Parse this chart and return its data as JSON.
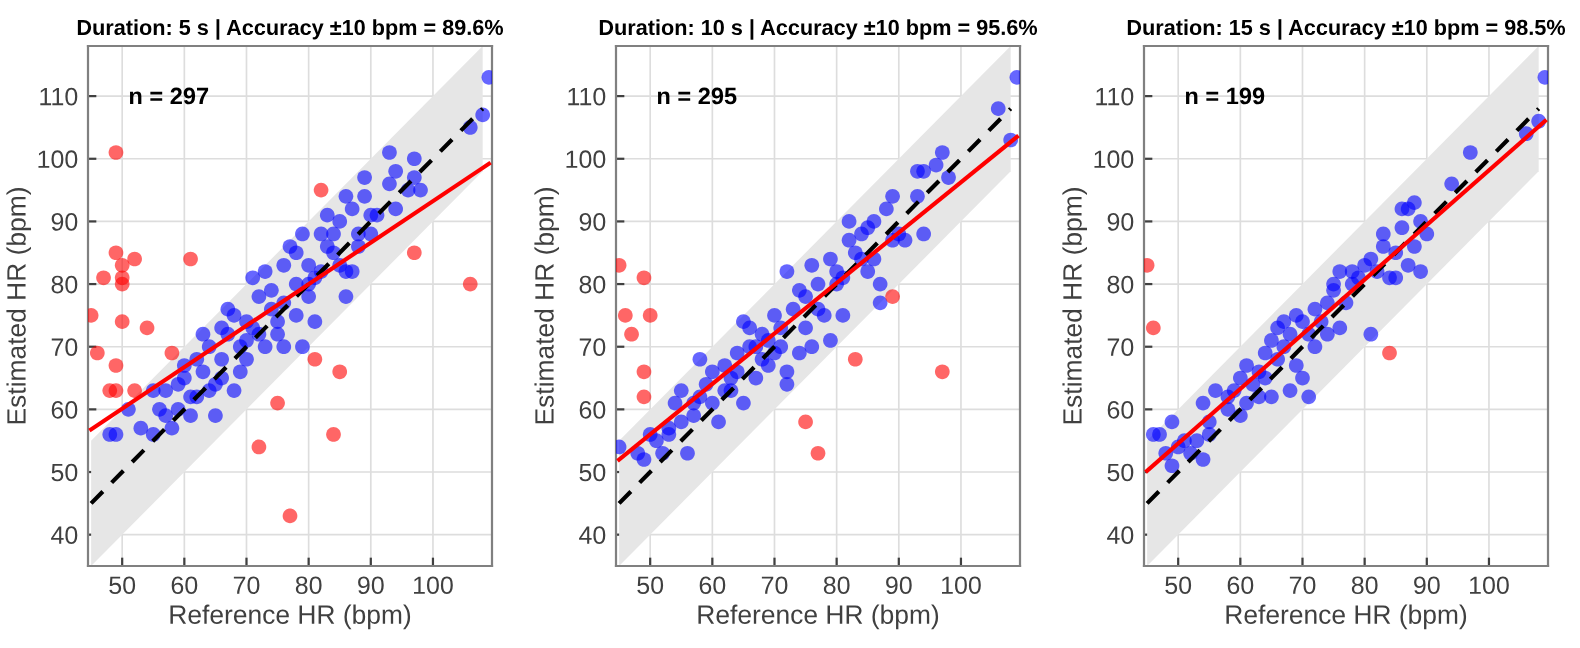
{
  "chart_data": [
    {
      "type": "scatter",
      "title": "Duration: 5 s | Accuracy ±10 bpm = 89.6%",
      "xlabel": "Reference HR (bpm)",
      "ylabel": "Estimated HR (bpm)",
      "annotations": [
        "n = 297"
      ],
      "xlim": [
        44.5,
        109.5
      ],
      "ylim": [
        35,
        118
      ],
      "xticks": [
        50,
        60,
        70,
        80,
        90,
        100
      ],
      "yticks": [
        40,
        50,
        60,
        70,
        80,
        90,
        100,
        110
      ],
      "grid": true,
      "marker": "circle",
      "series": [
        {
          "type": "line",
          "marker": "none",
          "color": "#000000",
          "line_style": "dashed",
          "x": [
            45,
            108
          ],
          "values": [
            45,
            108
          ],
          "lower": [
            35,
            98
          ],
          "upper": [
            55,
            118
          ]
        },
        {
          "color": "#0000ff",
          "x": [
            49,
            48,
            51,
            53,
            55,
            56,
            57,
            55,
            58,
            59,
            60,
            61,
            62,
            62,
            63,
            64,
            65,
            65,
            66,
            66,
            67,
            68,
            68,
            69,
            70,
            70,
            71,
            72,
            72,
            73,
            74,
            74,
            75,
            76,
            76,
            77,
            78,
            78,
            79,
            79,
            80,
            80,
            81,
            81,
            82,
            83,
            83,
            84,
            85,
            85,
            86,
            86,
            87,
            87,
            88,
            89,
            89,
            90,
            90,
            91,
            93,
            93,
            94,
            94,
            96,
            97,
            97,
            98,
            106,
            108,
            109,
            67,
            69,
            63,
            60,
            61,
            64,
            71,
            73,
            75,
            78,
            82,
            84,
            88,
            86,
            66,
            70,
            76,
            80,
            57,
            59
          ],
          "values": [
            56,
            56,
            60,
            57,
            56,
            60,
            63,
            63,
            57,
            60,
            65,
            59,
            62,
            68,
            66,
            70,
            59,
            64,
            73,
            68,
            76,
            75,
            63,
            70,
            74,
            68,
            81,
            78,
            72,
            82,
            79,
            76,
            74,
            70,
            83,
            86,
            85,
            80,
            88,
            70,
            83,
            78,
            74,
            81,
            88,
            91,
            86,
            88,
            90,
            83,
            94,
            78,
            82,
            92,
            88,
            97,
            94,
            91,
            88,
            91,
            101,
            96,
            98,
            92,
            95,
            100,
            97,
            95,
            105,
            107,
            113,
            72,
            66,
            72,
            67,
            62,
            63,
            73,
            70,
            72,
            75,
            82,
            85,
            86,
            82,
            65,
            71,
            77,
            80,
            59,
            64
          ]
        },
        {
          "color": "#ff0000",
          "x": [
            49,
            49,
            50,
            50,
            50,
            47,
            45,
            46,
            50,
            54,
            52,
            49,
            48,
            49,
            52,
            58,
            61,
            82,
            97,
            106,
            81,
            85,
            75,
            72,
            84,
            77
          ],
          "values": [
            101,
            85,
            83,
            81,
            80,
            81,
            75,
            69,
            74,
            73,
            84,
            67,
            63,
            63,
            63,
            69,
            84,
            95,
            85,
            80,
            68,
            66,
            61,
            54,
            56,
            43
          ]
        },
        {
          "type": "line",
          "marker": "none",
          "color": "#ff0000",
          "line_style": "solid",
          "x": [
            45,
            109
          ],
          "values": [
            56.8,
            99.2
          ]
        }
      ]
    },
    {
      "type": "scatter",
      "title": "Duration: 10 s | Accuracy ±10 bpm = 95.6%",
      "xlabel": "Reference HR (bpm)",
      "ylabel": "Estimated HR (bpm)",
      "annotations": [
        "n = 295"
      ],
      "xlim": [
        44.5,
        109.5
      ],
      "ylim": [
        35,
        118
      ],
      "xticks": [
        50,
        60,
        70,
        80,
        90,
        100
      ],
      "yticks": [
        40,
        50,
        60,
        70,
        80,
        90,
        100,
        110
      ],
      "grid": true,
      "marker": "circle",
      "series": [
        {
          "type": "line",
          "marker": "none",
          "color": "#000000",
          "line_style": "dashed",
          "x": [
            45,
            108
          ],
          "values": [
            45,
            108
          ],
          "lower": [
            35,
            98
          ],
          "upper": [
            55,
            118
          ]
        },
        {
          "color": "#0000ff",
          "x": [
            45,
            48,
            49,
            50,
            51,
            52,
            53,
            54,
            55,
            55,
            56,
            57,
            58,
            58,
            59,
            60,
            60,
            61,
            62,
            62,
            63,
            64,
            64,
            65,
            65,
            66,
            66,
            67,
            68,
            68,
            69,
            70,
            70,
            71,
            72,
            72,
            72,
            73,
            74,
            74,
            75,
            75,
            76,
            76,
            77,
            78,
            79,
            79,
            80,
            80,
            81,
            82,
            82,
            83,
            84,
            85,
            85,
            86,
            86,
            87,
            87,
            88,
            89,
            89,
            90,
            91,
            93,
            93,
            94,
            94,
            96,
            97,
            98,
            106,
            108,
            109,
            67,
            69,
            71,
            63,
            57,
            53,
            77,
            81,
            84
          ],
          "values": [
            54,
            53,
            52,
            56,
            55,
            53,
            57,
            61,
            63,
            58,
            53,
            59,
            68,
            62,
            64,
            66,
            61,
            58,
            67,
            63,
            65,
            69,
            66,
            74,
            61,
            70,
            73,
            65,
            72,
            68,
            71,
            75,
            69,
            73,
            82,
            66,
            64,
            76,
            79,
            69,
            78,
            73,
            83,
            70,
            80,
            75,
            84,
            71,
            82,
            80,
            75,
            90,
            87,
            85,
            88,
            89,
            82,
            90,
            84,
            80,
            77,
            92,
            94,
            87,
            88,
            87,
            98,
            94,
            98,
            88,
            99,
            101,
            97,
            108,
            103,
            113,
            70,
            67,
            70,
            63,
            61,
            56,
            76,
            81,
            84
          ]
        },
        {
          "color": "#ff0000",
          "x": [
            45,
            46,
            47,
            49,
            50,
            49,
            49,
            75,
            77,
            83,
            89,
            97
          ],
          "values": [
            83,
            75,
            72,
            81,
            75,
            66,
            62,
            58,
            53,
            68,
            78,
            66
          ]
        },
        {
          "type": "line",
          "marker": "none",
          "color": "#ff0000",
          "line_style": "solid",
          "x": [
            45,
            109
          ],
          "values": [
            52,
            103.5
          ]
        }
      ]
    },
    {
      "type": "scatter",
      "title": "Duration: 15 s | Accuracy ±10 bpm = 98.5%",
      "xlabel": "Reference HR (bpm)",
      "ylabel": "Estimated HR (bpm)",
      "annotations": [
        "n = 199"
      ],
      "xlim": [
        44.5,
        109.5
      ],
      "ylim": [
        35,
        118
      ],
      "xticks": [
        50,
        60,
        70,
        80,
        90,
        100
      ],
      "yticks": [
        40,
        50,
        60,
        70,
        80,
        90,
        100,
        110
      ],
      "grid": true,
      "marker": "circle",
      "series": [
        {
          "type": "line",
          "marker": "none",
          "color": "#000000",
          "line_style": "dashed",
          "x": [
            45,
            108
          ],
          "values": [
            45,
            108
          ],
          "lower": [
            35,
            98
          ],
          "upper": [
            55,
            118
          ]
        },
        {
          "color": "#0000ff",
          "x": [
            46,
            47,
            48,
            49,
            49,
            50,
            51,
            52,
            53,
            54,
            54,
            55,
            55,
            56,
            58,
            58,
            59,
            60,
            60,
            61,
            61,
            62,
            63,
            63,
            64,
            64,
            65,
            65,
            66,
            66,
            67,
            67,
            68,
            68,
            69,
            69,
            70,
            70,
            71,
            71,
            72,
            72,
            73,
            74,
            74,
            75,
            75,
            76,
            76,
            77,
            78,
            78,
            79,
            80,
            81,
            81,
            82,
            83,
            83,
            84,
            85,
            85,
            86,
            86,
            87,
            87,
            88,
            88,
            89,
            89,
            90,
            94,
            97,
            106,
            108,
            109
          ],
          "values": [
            56,
            56,
            53,
            58,
            51,
            54,
            55,
            53,
            55,
            61,
            52,
            58,
            56,
            63,
            62,
            60,
            63,
            65,
            59,
            67,
            61,
            64,
            66,
            62,
            69,
            65,
            71,
            62,
            73,
            68,
            70,
            74,
            72,
            63,
            75,
            67,
            74,
            65,
            72,
            62,
            76,
            70,
            74,
            77,
            72,
            79,
            80,
            82,
            73,
            77,
            82,
            80,
            81,
            83,
            84,
            72,
            82,
            88,
            86,
            81,
            85,
            81,
            92,
            89,
            92,
            83,
            93,
            86,
            82,
            90,
            88,
            96,
            101,
            104,
            106,
            113
          ]
        },
        {
          "color": "#ff0000",
          "x": [
            45,
            46,
            84
          ],
          "values": [
            83,
            73,
            69
          ]
        },
        {
          "type": "line",
          "marker": "none",
          "color": "#ff0000",
          "line_style": "solid",
          "x": [
            45,
            109
          ],
          "values": [
            50.2,
            106
          ]
        }
      ]
    }
  ]
}
